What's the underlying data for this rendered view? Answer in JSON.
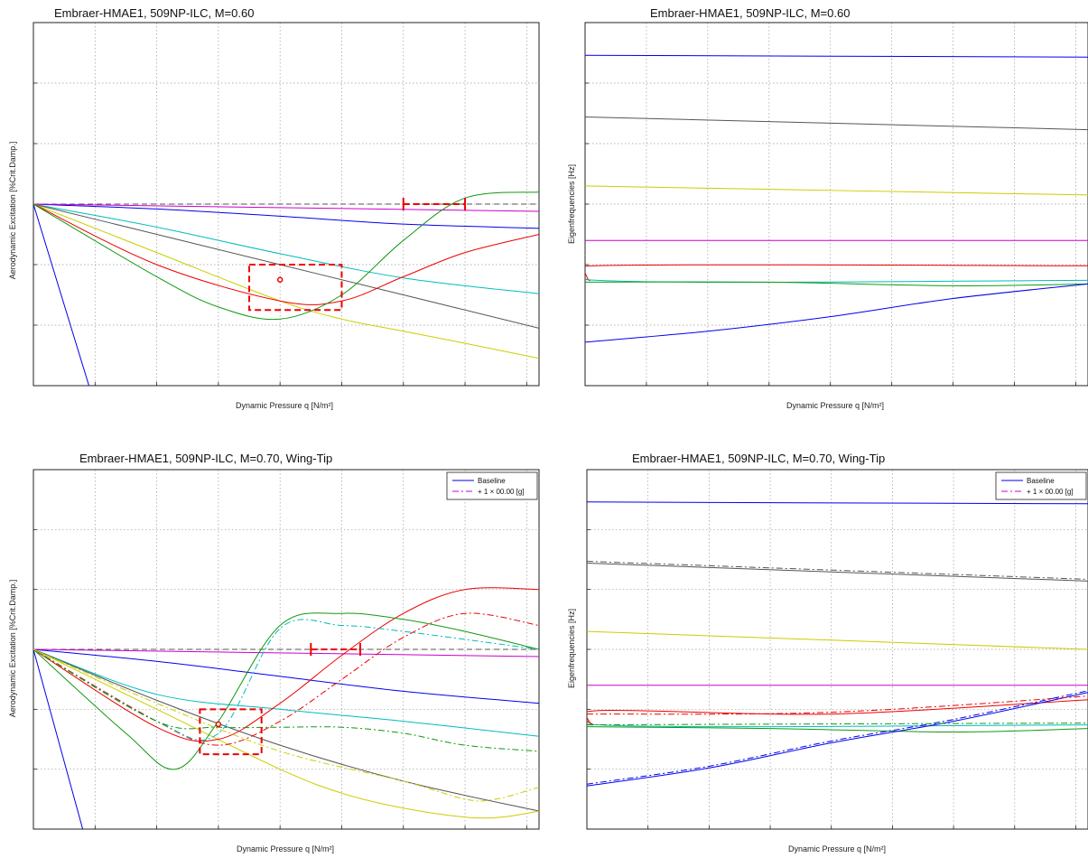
{
  "chart_data": [
    {
      "id": "top-left",
      "type": "line",
      "title": "Embraer-HMAE1, 509NP-ILC, M=0.60",
      "xlabel": "Dynamic Pressure q [N/m²]",
      "ylabel": "Aerodynamic Excitation [%Crit.Damp.]",
      "xlim": [
        0,
        8.2
      ],
      "ylim": [
        -3,
        3
      ],
      "grid": true,
      "legend": null,
      "series": [
        {
          "color": "#0000ee",
          "style": "solid",
          "x": [
            0,
            0.9
          ],
          "y": [
            0,
            -3
          ]
        },
        {
          "color": "#0000ee",
          "style": "solid",
          "x": [
            0,
            2,
            4,
            6,
            8.2
          ],
          "y": [
            0,
            -0.08,
            -0.2,
            -0.33,
            -0.4
          ]
        },
        {
          "color": "#cc00cc",
          "style": "solid",
          "x": [
            0,
            8.2
          ],
          "y": [
            0,
            -0.12
          ]
        },
        {
          "color": "#00bbbb",
          "style": "solid",
          "x": [
            0,
            2,
            4,
            6,
            8.2
          ],
          "y": [
            0,
            -0.38,
            -0.82,
            -1.22,
            -1.48
          ]
        },
        {
          "color": "#555555",
          "style": "solid",
          "x": [
            0,
            2,
            4,
            6,
            8.2
          ],
          "y": [
            0,
            -0.5,
            -1.0,
            -1.5,
            -2.05
          ]
        },
        {
          "color": "#cccc00",
          "style": "solid",
          "x": [
            0,
            2,
            4,
            5,
            6,
            7,
            8.2
          ],
          "y": [
            0,
            -0.8,
            -1.6,
            -1.9,
            -2.1,
            -2.3,
            -2.55
          ]
        },
        {
          "color": "#ee0000",
          "style": "solid",
          "x": [
            0,
            2,
            4,
            5,
            6,
            7,
            8.2
          ],
          "y": [
            0,
            -1.0,
            -1.6,
            -1.6,
            -1.2,
            -0.8,
            -0.5
          ]
        },
        {
          "color": "#119911",
          "style": "solid",
          "x": [
            0,
            2,
            3,
            4,
            5,
            6,
            7,
            8.2
          ],
          "y": [
            0,
            -1.2,
            -1.7,
            -1.9,
            -1.5,
            -0.6,
            0.1,
            0.2
          ]
        }
      ],
      "reference_line": {
        "y": 0,
        "style": "dashed",
        "color": "#555555"
      },
      "annotations": [
        {
          "kind": "dashed-box",
          "color": "#ee0000",
          "x": [
            3.5,
            5.0
          ],
          "y": [
            -1.75,
            -1.0
          ]
        },
        {
          "kind": "bracket",
          "color": "#ee0000",
          "x": [
            6.0,
            7.0
          ],
          "y": 0
        },
        {
          "kind": "marker",
          "color": "#ee0000",
          "x": 4.0,
          "y": -1.25
        }
      ]
    },
    {
      "id": "top-right",
      "type": "line",
      "title": "Embraer-HMAE1, 509NP-ILC, M=0.60",
      "xlabel": "Dynamic Pressure q [N/m²]",
      "ylabel": "Eigenfrequencies [Hz]",
      "xlim": [
        0,
        8.2
      ],
      "ylim": [
        0,
        10
      ],
      "grid": true,
      "legend": null,
      "series": [
        {
          "color": "#0000ee",
          "style": "solid",
          "x": [
            0,
            8.2
          ],
          "y": [
            9.1,
            9.05
          ]
        },
        {
          "color": "#555555",
          "style": "solid",
          "x": [
            0,
            8.2
          ],
          "y": [
            7.4,
            7.05
          ]
        },
        {
          "color": "#cccc00",
          "style": "solid",
          "x": [
            0,
            8.2
          ],
          "y": [
            5.5,
            5.25
          ]
        },
        {
          "color": "#cc00cc",
          "style": "solid",
          "x": [
            0,
            8.2
          ],
          "y": [
            4.0,
            4.0
          ]
        },
        {
          "color": "#ee0000",
          "style": "solid",
          "x": [
            0,
            0.08,
            0.15,
            8.2
          ],
          "y": [
            3.1,
            2.9,
            3.3,
            3.3
          ]
        },
        {
          "color": "#00bbbb",
          "style": "solid",
          "x": [
            0,
            0.2,
            8.2
          ],
          "y": [
            3.6,
            2.9,
            2.9
          ]
        },
        {
          "color": "#119911",
          "style": "solid",
          "x": [
            0,
            3,
            6,
            8.2
          ],
          "y": [
            2.85,
            2.85,
            2.75,
            2.8
          ]
        },
        {
          "color": "#0000ee",
          "style": "solid",
          "x": [
            0,
            2,
            4,
            6,
            8.2
          ],
          "y": [
            1.2,
            1.5,
            1.9,
            2.4,
            2.8
          ]
        }
      ],
      "reference_line": null,
      "annotations": []
    },
    {
      "id": "bottom-left",
      "type": "line",
      "title": "Embraer-HMAE1, 509NP-ILC, M=0.70, Wing-Tip",
      "xlabel": "Dynamic Pressure q [N/m²]",
      "ylabel": "Aerodynamic Excitation [%Crit.Damp.]",
      "xlim": [
        0,
        8.2
      ],
      "ylim": [
        -3,
        3
      ],
      "grid": true,
      "legend": {
        "placement": "top-right",
        "entries": [
          {
            "label": "Baseline",
            "color": "#0000ee",
            "style": "solid"
          },
          {
            "label": "+ 1 × 00.00 [g]",
            "color": "#cc00cc",
            "style": "dashdot"
          }
        ]
      },
      "series": [
        {
          "color": "#0000ee",
          "style": "solid",
          "x": [
            0,
            0.8
          ],
          "y": [
            0,
            -3
          ]
        },
        {
          "color": "#0000ee",
          "style": "solid",
          "x": [
            0,
            2,
            4,
            6,
            8.2
          ],
          "y": [
            0,
            -0.2,
            -0.45,
            -0.7,
            -0.9
          ]
        },
        {
          "color": "#cc00cc",
          "style": "solid",
          "x": [
            0,
            8.2
          ],
          "y": [
            0,
            -0.12
          ]
        },
        {
          "color": "#00bbbb",
          "style": "solid",
          "x": [
            0,
            2,
            4,
            6,
            8.2
          ],
          "y": [
            0,
            -0.75,
            -1.0,
            -1.2,
            -1.45
          ]
        },
        {
          "color": "#555555",
          "style": "solid",
          "x": [
            0,
            2,
            4,
            6,
            8.2
          ],
          "y": [
            0,
            -0.85,
            -1.6,
            -2.2,
            -2.7
          ]
        },
        {
          "color": "#cccc00",
          "style": "solid",
          "x": [
            0,
            2,
            4,
            5,
            6,
            7,
            7.6,
            8.2
          ],
          "y": [
            0,
            -1.0,
            -2.0,
            -2.4,
            -2.65,
            -2.8,
            -2.8,
            -2.7
          ]
        },
        {
          "color": "#ee0000",
          "style": "solid",
          "x": [
            0,
            2,
            3,
            4,
            5,
            6,
            7,
            8.2
          ],
          "y": [
            0,
            -1.3,
            -1.5,
            -0.9,
            -0.1,
            0.6,
            1.0,
            1.0
          ]
        },
        {
          "color": "#119911",
          "style": "solid",
          "x": [
            0,
            1.5,
            2.3,
            3,
            4,
            5,
            6,
            7,
            8.2
          ],
          "y": [
            0,
            -1.4,
            -2.0,
            -1.2,
            0.4,
            0.6,
            0.5,
            0.3,
            0
          ]
        },
        {
          "color": "#ee0000",
          "style": "dashdot",
          "x": [
            0,
            2,
            3,
            4,
            5,
            6,
            7,
            8.2
          ],
          "y": [
            0,
            -1.2,
            -1.6,
            -1.2,
            -0.5,
            0.2,
            0.6,
            0.4
          ]
        },
        {
          "color": "#00bbbb",
          "style": "dashdot",
          "x": [
            0,
            2,
            3,
            4,
            5,
            6,
            8.2
          ],
          "y": [
            0,
            -1.2,
            -1.4,
            0.35,
            0.4,
            0.3,
            0
          ]
        },
        {
          "color": "#119911",
          "style": "dashdot",
          "x": [
            0,
            2,
            3,
            4,
            5,
            6,
            7,
            8.2
          ],
          "y": [
            0,
            -1.2,
            -1.3,
            -1.3,
            -1.3,
            -1.4,
            -1.6,
            -1.7
          ]
        },
        {
          "color": "#cccc00",
          "style": "dashdot",
          "x": [
            0,
            2,
            4,
            6,
            7,
            7.5,
            8.2
          ],
          "y": [
            0,
            -0.9,
            -1.7,
            -2.2,
            -2.5,
            -2.5,
            -2.3
          ]
        }
      ],
      "reference_line": {
        "y": 0,
        "style": "dashed",
        "color": "#555555"
      },
      "annotations": [
        {
          "kind": "dashed-box",
          "color": "#ee0000",
          "x": [
            2.7,
            3.7
          ],
          "y": [
            -1.75,
            -1.0
          ]
        },
        {
          "kind": "bracket",
          "color": "#ee0000",
          "x": [
            4.5,
            5.3
          ],
          "y": 0
        },
        {
          "kind": "marker",
          "color": "#ee0000",
          "x": 3.0,
          "y": -1.25
        }
      ]
    },
    {
      "id": "bottom-right",
      "type": "line",
      "title": "Embraer-HMAE1, 509NP-ILC, M=0.70, Wing-Tip",
      "xlabel": "Dynamic Pressure q [N/m²]",
      "ylabel": "Eigenfrequencies [Hz]",
      "xlim": [
        0,
        8.2
      ],
      "ylim": [
        0,
        10
      ],
      "grid": true,
      "legend": {
        "placement": "top-right",
        "entries": [
          {
            "label": "Baseline",
            "color": "#0000ee",
            "style": "solid"
          },
          {
            "label": "+ 1 × 00.00 [g]",
            "color": "#cc00cc",
            "style": "dashdot"
          }
        ]
      },
      "series": [
        {
          "color": "#0000ee",
          "style": "solid",
          "x": [
            0,
            8.2
          ],
          "y": [
            9.1,
            9.05
          ]
        },
        {
          "color": "#555555",
          "style": "solid",
          "x": [
            0,
            8.2
          ],
          "y": [
            7.4,
            6.9
          ]
        },
        {
          "color": "#cccc00",
          "style": "solid",
          "x": [
            0,
            8.2
          ],
          "y": [
            5.5,
            5.0
          ]
        },
        {
          "color": "#cc00cc",
          "style": "solid",
          "x": [
            0,
            8.2
          ],
          "y": [
            4.0,
            4.0
          ]
        },
        {
          "color": "#ee0000",
          "style": "solid",
          "x": [
            0,
            0.1,
            0.2,
            4,
            8.2
          ],
          "y": [
            3.1,
            2.9,
            3.3,
            3.2,
            3.6
          ]
        },
        {
          "color": "#00bbbb",
          "style": "solid",
          "x": [
            0,
            0.2,
            8.2
          ],
          "y": [
            3.6,
            2.9,
            2.9
          ]
        },
        {
          "color": "#119911",
          "style": "solid",
          "x": [
            0,
            3,
            6,
            8.2
          ],
          "y": [
            2.85,
            2.8,
            2.7,
            2.8
          ]
        },
        {
          "color": "#0000ee",
          "style": "solid",
          "x": [
            0,
            2,
            4,
            6,
            8.2
          ],
          "y": [
            1.2,
            1.7,
            2.4,
            3.0,
            3.8
          ]
        },
        {
          "color": "#ee0000",
          "style": "dashdot",
          "x": [
            0,
            4,
            8.2
          ],
          "y": [
            3.2,
            3.25,
            3.7
          ]
        },
        {
          "color": "#0000ee",
          "style": "dashdot",
          "x": [
            0,
            2,
            4,
            6,
            8.2
          ],
          "y": [
            1.25,
            1.75,
            2.45,
            3.05,
            3.85
          ]
        },
        {
          "color": "#555555",
          "style": "dashdot",
          "x": [
            0,
            8.2
          ],
          "y": [
            7.45,
            6.95
          ]
        },
        {
          "color": "#119911",
          "style": "dashdot",
          "x": [
            0,
            8.2
          ],
          "y": [
            2.9,
            2.95
          ]
        }
      ],
      "reference_line": null,
      "annotations": []
    }
  ]
}
